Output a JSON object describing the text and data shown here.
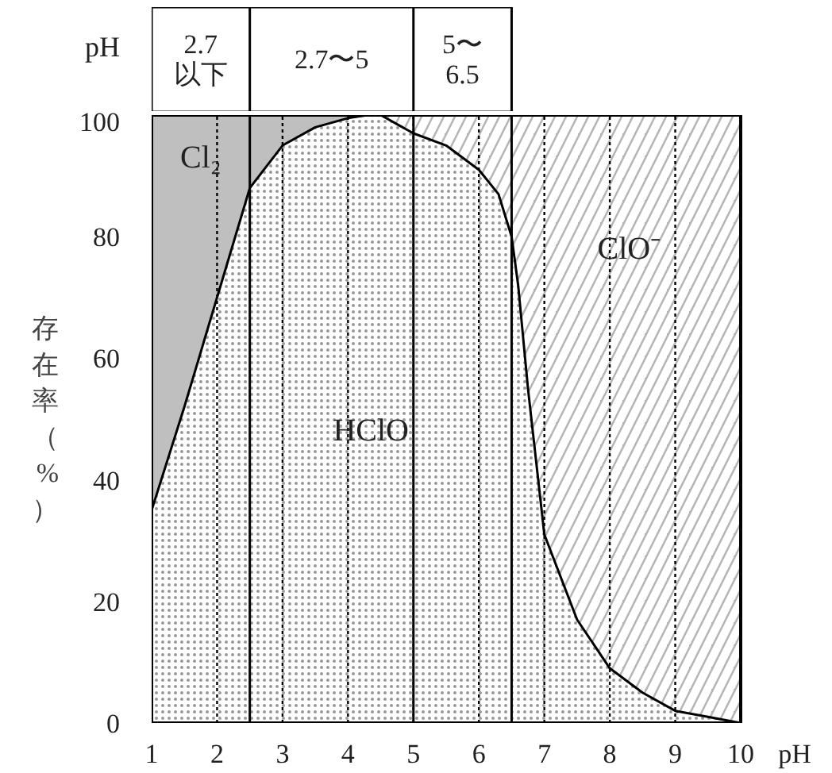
{
  "chart_data": {
    "type": "area",
    "stacked": true,
    "xlabel": "pH",
    "ylabel": "存在率（%）",
    "x": [
      1,
      1.5,
      2,
      2.5,
      3,
      3.5,
      4,
      4.3,
      4.5,
      5,
      5.5,
      6,
      6.3,
      6.5,
      6.6,
      6.75,
      7,
      7.5,
      8,
      8.5,
      9,
      9.5,
      10
    ],
    "series": [
      {
        "color": "#9a9a9a",
        "values": [
          35,
          52,
          70,
          88,
          95,
          98,
          99.5,
          100,
          100,
          97,
          95,
          91,
          87,
          80,
          72,
          55,
          31,
          17,
          9,
          5,
          2,
          1,
          0
        ]
      },
      {
        "color": "#bfbfbf",
        "values": [
          65,
          48,
          30,
          12,
          5,
          2,
          0.5,
          0,
          null,
          null,
          null,
          null,
          null,
          null,
          null,
          null,
          null,
          null,
          null,
          null,
          null,
          null,
          null
        ]
      },
      {
        "color": "#b5b5b5",
        "values": [
          null,
          null,
          null,
          null,
          null,
          null,
          null,
          null,
          0,
          3,
          5,
          9,
          13,
          20,
          28,
          45,
          69,
          83,
          91,
          95,
          98,
          99,
          100
        ]
      }
    ],
    "xlim": [
      1,
      10
    ],
    "ylim": [
      0,
      100
    ],
    "xticks": [
      1,
      2,
      3,
      4,
      5,
      6,
      7,
      8,
      9,
      10
    ],
    "yticks": [
      0,
      20,
      40,
      60,
      80,
      100
    ],
    "grid": "x",
    "ref_lines": [
      {
        "axis": "x",
        "value": 2.5,
        "line_style": "solid"
      },
      {
        "axis": "x",
        "value": 5,
        "line_style": "solid"
      },
      {
        "axis": "x",
        "value": 6.5,
        "line_style": "solid"
      }
    ],
    "annotations": [
      "pH",
      "2.7\n以下",
      "2.7〜5",
      "5〜\n6.5",
      "Cl₂",
      "HClO",
      "ClO⁻"
    ]
  }
}
